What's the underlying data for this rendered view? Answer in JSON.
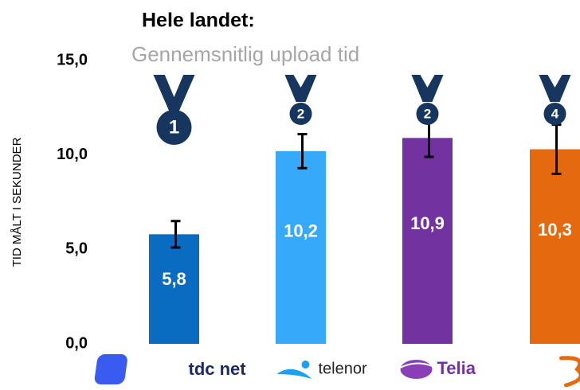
{
  "chart_data": {
    "type": "bar",
    "title": "Hele landet:",
    "subtitle": "Gennemsnitlig upload tid",
    "y_axis_label": "TID MÅLT I SEKUNDER",
    "categories": [
      "tdc net",
      "telenor",
      "Telia",
      null
    ],
    "values": [
      5.8,
      10.2,
      10.9,
      10.3
    ],
    "value_labels": [
      "5,8",
      "10,2",
      "10,9",
      "10,3"
    ],
    "errors": [
      0.7,
      0.9,
      1.0,
      1.3
    ],
    "ranks": [
      "1",
      "2",
      "2",
      "4"
    ],
    "colors": [
      "#0a6cc0",
      "#36a9fb",
      "#7233a1",
      "#e4690f"
    ],
    "ylim": [
      0,
      15
    ],
    "yticks": [
      {
        "value": 0,
        "label": "0,0"
      },
      {
        "value": 5,
        "label": "5,0"
      },
      {
        "value": 10,
        "label": "10,0"
      },
      {
        "value": 15,
        "label": "15,0"
      }
    ],
    "grid": false
  }
}
